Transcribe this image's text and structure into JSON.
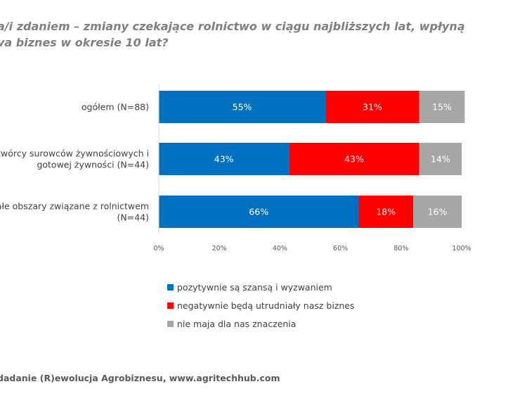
{
  "title_lines": [
    "a/i zdaniem – zmiany czekające rolnictwo w ciągu najbliższych lat, wpłyną",
    "va biznes w okresie 10 lat?"
  ],
  "footer": "dadanie (R)ewolucja Agrobiznesu, www.agritechhub.com",
  "colors": {
    "positive": "#0070c0",
    "negative": "#ff0000",
    "neutral": "#a6a6a6"
  },
  "chart_data": {
    "type": "bar",
    "orientation": "horizontal",
    "stacked": true,
    "categories": [
      [
        "ogółem (N=88)"
      ],
      [
        "ytwórcy surowców żywnościowych i",
        "gotowej żywności (N=44)"
      ],
      [
        "stałe obszary związane z rolnictwem",
        "(N=44)"
      ]
    ],
    "series": [
      {
        "name": "pozytywnie są szansą i wyzwaniem",
        "values": [
          55,
          43,
          66
        ],
        "labels": [
          "55%",
          "43%",
          "66%"
        ],
        "color": "#0070c0"
      },
      {
        "name": "negatywnie będą utrudniały nasz biznes",
        "values": [
          31,
          43,
          18
        ],
        "labels": [
          "31%",
          "43%",
          "18%"
        ],
        "color": "#ff0000"
      },
      {
        "name": "nie maja dla nas znaczenia",
        "values": [
          15,
          14,
          16
        ],
        "labels": [
          "15%",
          "14%",
          "16%"
        ],
        "color": "#a6a6a6"
      }
    ],
    "xlim": [
      0,
      100
    ],
    "xticks": [
      "0%",
      "20%",
      "40%",
      "60%",
      "80%",
      "100%"
    ],
    "grid": false,
    "legend_position": "bottom"
  }
}
